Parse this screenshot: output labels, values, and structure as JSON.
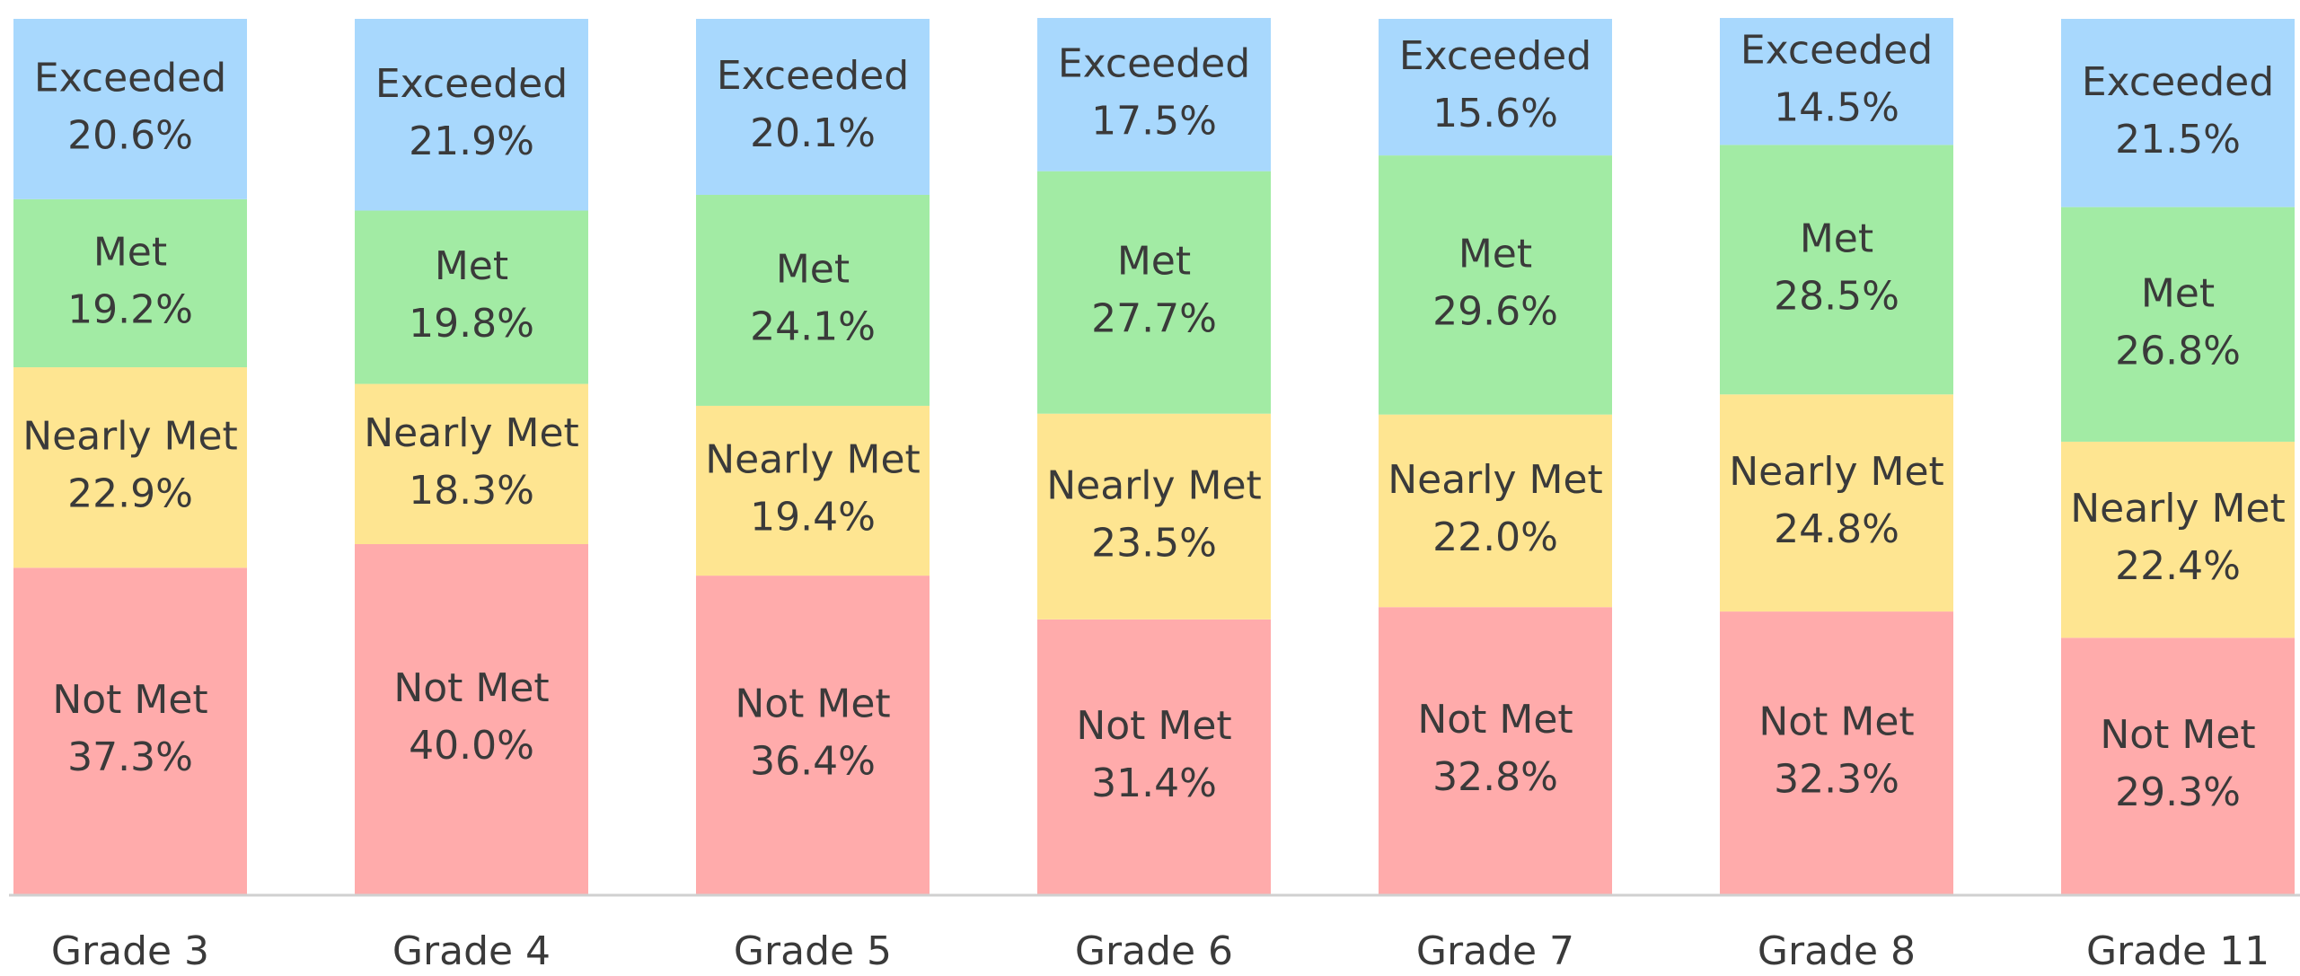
{
  "chart_data": {
    "type": "stacked_bar",
    "categories": [
      "Grade 3",
      "Grade 4",
      "Grade 5",
      "Grade 6",
      "Grade 7",
      "Grade 8",
      "Grade 11"
    ],
    "series": [
      {
        "name": "Not Met",
        "color": "#ffabab",
        "values": [
          37.3,
          40.0,
          36.4,
          31.4,
          32.8,
          32.3,
          29.3
        ],
        "value_labels": [
          "37.3%",
          "40.0%",
          "36.4%",
          "31.4%",
          "32.8%",
          "32.3%",
          "29.3%"
        ]
      },
      {
        "name": "Nearly Met",
        "color": "#fee591",
        "values": [
          22.9,
          18.3,
          19.4,
          23.5,
          22.0,
          24.8,
          22.4
        ],
        "value_labels": [
          "22.9%",
          "18.3%",
          "19.4%",
          "23.5%",
          "22.0%",
          "24.8%",
          "22.4%"
        ]
      },
      {
        "name": "Met",
        "color": "#a2eba4",
        "values": [
          19.2,
          19.8,
          24.1,
          27.7,
          29.6,
          28.5,
          26.8
        ],
        "value_labels": [
          "19.2%",
          "19.8%",
          "24.1%",
          "27.7%",
          "29.6%",
          "28.5%",
          "26.8%"
        ]
      },
      {
        "name": "Exceeded",
        "color": "#a8d8fd",
        "values": [
          20.6,
          21.9,
          20.1,
          17.5,
          15.6,
          14.5,
          21.5
        ],
        "value_labels": [
          "20.6%",
          "21.9%",
          "20.1%",
          "17.5%",
          "15.6%",
          "14.5%",
          "21.5%"
        ]
      }
    ],
    "ylim": [
      0,
      100
    ]
  }
}
